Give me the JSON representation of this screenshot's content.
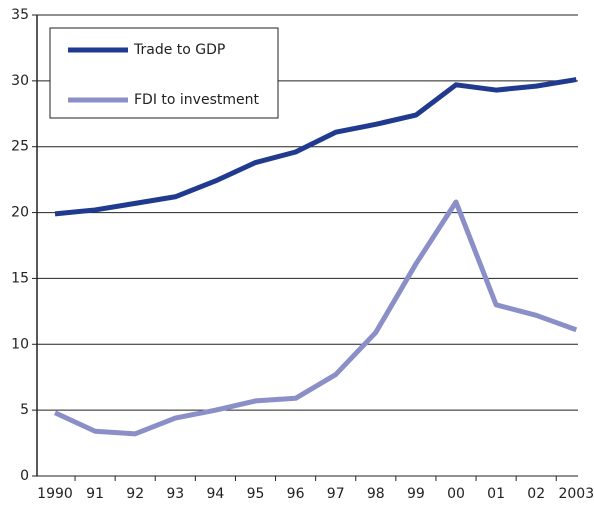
{
  "chart_data": {
    "type": "line",
    "categories": [
      "1990",
      "91",
      "92",
      "93",
      "94",
      "95",
      "96",
      "97",
      "98",
      "99",
      "00",
      "01",
      "02",
      "2003"
    ],
    "series": [
      {
        "name": "Trade to GDP",
        "color": "#1f3a8f",
        "values": [
          19.9,
          20.2,
          20.7,
          21.2,
          22.4,
          23.8,
          24.6,
          26.1,
          26.7,
          27.4,
          29.7,
          29.3,
          29.6,
          30.1
        ]
      },
      {
        "name": "FDI to investment",
        "color": "#8a8fc8",
        "values": [
          4.8,
          3.4,
          3.2,
          4.4,
          5.0,
          5.7,
          5.9,
          7.7,
          10.9,
          16.1,
          20.8,
          13.0,
          12.2,
          11.1
        ]
      }
    ],
    "ylim": [
      0,
      35
    ],
    "yticks": [
      0,
      5,
      10,
      15,
      20,
      25,
      30,
      35
    ],
    "grid": true,
    "legend": "top-left"
  }
}
